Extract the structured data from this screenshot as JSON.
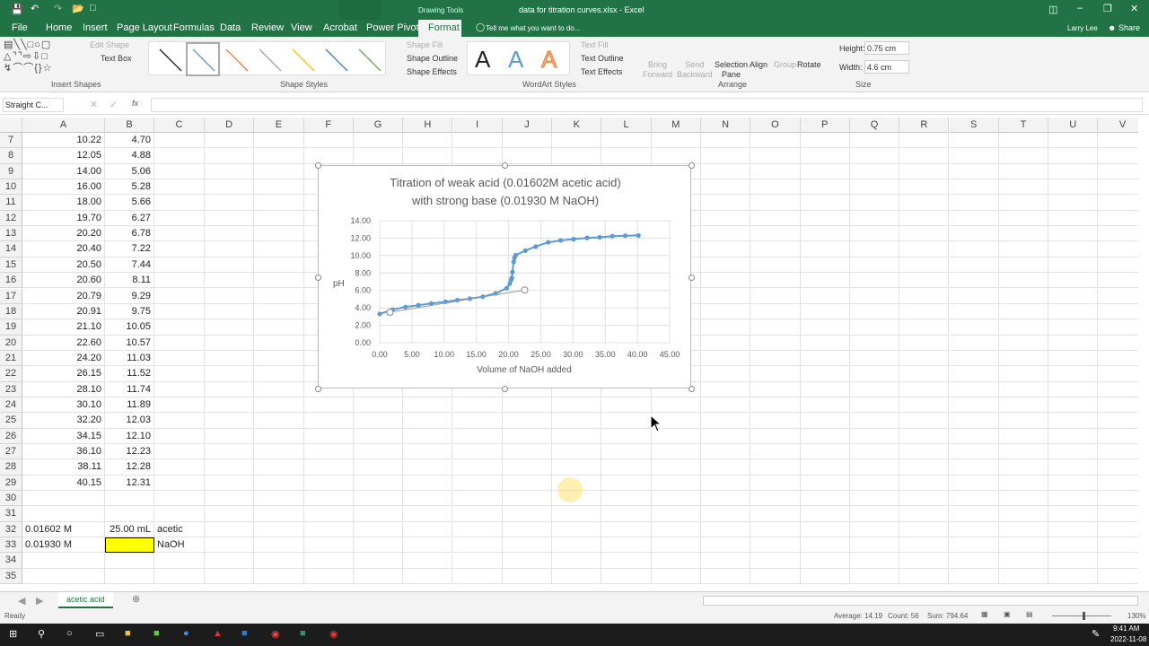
{
  "window": {
    "title": "data for titration curves.xlsx - Excel",
    "context_tab": "Drawing Tools",
    "user": "Larry Lee",
    "share": "Share"
  },
  "tabs": [
    "File",
    "Home",
    "Insert",
    "Page Layout",
    "Formulas",
    "Data",
    "Review",
    "View",
    "Acrobat",
    "Power Pivot",
    "Format"
  ],
  "tell_me": "Tell me what you want to do...",
  "ribbon": {
    "insert_shapes": {
      "label": "Insert Shapes",
      "edit_shape": "Edit Shape",
      "text_box": "Text Box"
    },
    "shape_styles": {
      "label": "Shape Styles",
      "fill": "Shape Fill",
      "outline": "Shape Outline",
      "effects": "Shape Effects",
      "swatches": [
        "#222222",
        "#5b9bd5",
        "#ed7d31",
        "#a5a5a5",
        "#ffc000",
        "#4472c4",
        "#70ad47"
      ]
    },
    "wordart": {
      "label": "WordArt Styles",
      "letter": "A",
      "text_fill": "Text Fill",
      "text_outline": "Text Outline",
      "text_effects": "Text Effects"
    },
    "arrange": {
      "label": "Arrange",
      "bring_forward": [
        "Bring",
        "Forward"
      ],
      "send_backward": [
        "Send",
        "Backward"
      ],
      "selection_pane": [
        "Selection",
        "Pane"
      ],
      "align": "Align",
      "group": "Group",
      "rotate": "Rotate"
    },
    "size": {
      "label": "Size",
      "height_label": "Height:",
      "height": "0.75 cm",
      "width_label": "Width:",
      "width": "4.6 cm"
    }
  },
  "formula_bar": {
    "name_box": "Straight C...",
    "fx": "fx",
    "value": ""
  },
  "columns": [
    "A",
    "B",
    "C",
    "D",
    "E",
    "F",
    "G",
    "H",
    "I",
    "J",
    "K",
    "L",
    "M",
    "N",
    "O",
    "P",
    "Q",
    "R",
    "S",
    "T",
    "U",
    "V"
  ],
  "rows": [
    {
      "n": "7",
      "a": "10.22",
      "b": "4.70"
    },
    {
      "n": "8",
      "a": "12.05",
      "b": "4.88"
    },
    {
      "n": "9",
      "a": "14.00",
      "b": "5.06"
    },
    {
      "n": "10",
      "a": "16.00",
      "b": "5.28"
    },
    {
      "n": "11",
      "a": "18.00",
      "b": "5.66"
    },
    {
      "n": "12",
      "a": "19.70",
      "b": "6.27"
    },
    {
      "n": "13",
      "a": "20.20",
      "b": "6.78"
    },
    {
      "n": "14",
      "a": "20.40",
      "b": "7.22"
    },
    {
      "n": "15",
      "a": "20.50",
      "b": "7.44"
    },
    {
      "n": "16",
      "a": "20.60",
      "b": "8.11"
    },
    {
      "n": "17",
      "a": "20.79",
      "b": "9.29"
    },
    {
      "n": "18",
      "a": "20.91",
      "b": "9.75"
    },
    {
      "n": "19",
      "a": "21.10",
      "b": "10.05"
    },
    {
      "n": "20",
      "a": "22.60",
      "b": "10.57"
    },
    {
      "n": "21",
      "a": "24.20",
      "b": "11.03"
    },
    {
      "n": "22",
      "a": "26.15",
      "b": "11.52"
    },
    {
      "n": "23",
      "a": "28.10",
      "b": "11.74"
    },
    {
      "n": "24",
      "a": "30.10",
      "b": "11.89"
    },
    {
      "n": "25",
      "a": "32.20",
      "b": "12.03"
    },
    {
      "n": "26",
      "a": "34.15",
      "b": "12.10"
    },
    {
      "n": "27",
      "a": "36.10",
      "b": "12.23"
    },
    {
      "n": "28",
      "a": "38.11",
      "b": "12.28"
    },
    {
      "n": "29",
      "a": "40.15",
      "b": "12.31"
    },
    {
      "n": "30",
      "a": "",
      "b": "",
      "c": ""
    },
    {
      "n": "31",
      "a": "",
      "b": "",
      "c": ""
    },
    {
      "n": "32",
      "a": "0.01602 M",
      "b": "25.00 mL",
      "c": "acetic"
    },
    {
      "n": "33",
      "a": "0.01930 M",
      "b": "",
      "c": "NaOH",
      "b_fill": "#ffff00"
    },
    {
      "n": "34",
      "a": "",
      "b": "",
      "c": ""
    },
    {
      "n": "35",
      "a": "",
      "b": "",
      "c": ""
    }
  ],
  "chart_data": {
    "type": "scatter",
    "title": "Titration of weak acid (0.01602M acetic acid)\nwith strong base (0.01930 M NaOH)",
    "title_lines": [
      "Titration of weak acid (0.01602M acetic acid)",
      "with strong base (0.01930 M NaOH)"
    ],
    "xlabel": "Volume of NaOH added",
    "ylabel": "pH",
    "xlim": [
      0,
      45
    ],
    "ylim": [
      0,
      14
    ],
    "xticks": [
      "0.00",
      "5.00",
      "10.00",
      "15.00",
      "20.00",
      "25.00",
      "30.00",
      "35.00",
      "40.00",
      "45.00"
    ],
    "yticks": [
      "0.00",
      "2.00",
      "4.00",
      "6.00",
      "8.00",
      "10.00",
      "12.00",
      "14.00"
    ],
    "grid": true,
    "color": "#5b9bd5",
    "x": [
      0.0,
      2.0,
      4.0,
      6.0,
      8.0,
      10.22,
      12.05,
      14.0,
      16.0,
      18.0,
      19.7,
      20.2,
      20.4,
      20.5,
      20.6,
      20.79,
      20.91,
      21.1,
      22.6,
      24.2,
      26.15,
      28.1,
      30.1,
      32.2,
      34.15,
      36.1,
      38.11,
      40.15
    ],
    "y": [
      3.3,
      3.8,
      4.1,
      4.3,
      4.5,
      4.7,
      4.88,
      5.06,
      5.28,
      5.66,
      6.27,
      6.78,
      7.22,
      7.44,
      8.11,
      9.29,
      9.75,
      10.05,
      10.57,
      11.03,
      11.52,
      11.74,
      11.89,
      12.03,
      12.1,
      12.23,
      12.28,
      12.31
    ],
    "drawn_line": {
      "x": [
        1.6,
        22.5
      ],
      "y": [
        3.5,
        6.05
      ]
    }
  },
  "sheet_tab": "acetic acid",
  "status": {
    "ready": "Ready",
    "average": "Average: 14.19",
    "count": "Count: 56",
    "sum": "Sum: 794.64",
    "zoom": "130%"
  },
  "clock": {
    "time": "9:41 AM",
    "date": "2022-11-08"
  }
}
